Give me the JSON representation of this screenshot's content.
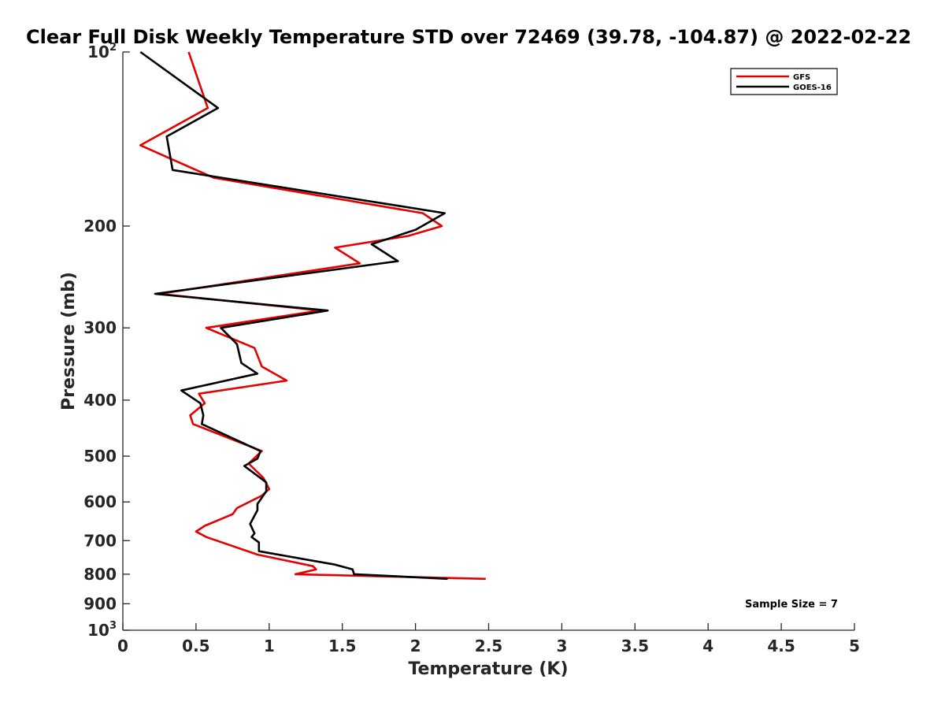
{
  "chart_data": {
    "type": "line",
    "title": "Clear Full Disk Weekly Temperature STD over 72469 (39.78, -104.87) @ 2022-02-22",
    "xlabel": "Temperature (K)",
    "ylabel": "Pressure (mb)",
    "xlim": [
      0,
      5
    ],
    "ylim": [
      100,
      1000
    ],
    "y_scale": "log",
    "y_reversed": true,
    "x_ticks": [
      0,
      0.5,
      1,
      1.5,
      2,
      2.5,
      3,
      3.5,
      4,
      4.5,
      5
    ],
    "x_tick_labels": [
      "0",
      "0.5",
      "1",
      "1.5",
      "2",
      "2.5",
      "3",
      "3.5",
      "4",
      "4.5",
      "5"
    ],
    "y_ticks": [
      100,
      200,
      300,
      400,
      500,
      600,
      700,
      800,
      900,
      1000
    ],
    "y_tick_labels": [
      {
        "base": "10",
        "exp": "2"
      },
      {
        "text": "200"
      },
      {
        "text": "300"
      },
      {
        "text": "400"
      },
      {
        "text": "500"
      },
      {
        "text": "600"
      },
      {
        "text": "700"
      },
      {
        "text": "800"
      },
      {
        "text": "900"
      },
      {
        "base": "10",
        "exp": "3"
      }
    ],
    "grid": false,
    "legend_position": "top-right",
    "annotation": "Sample Size = 7",
    "series": [
      {
        "name": "GFS",
        "color": "#e60000",
        "points": [
          [
            0.45,
            100
          ],
          [
            0.58,
            125
          ],
          [
            0.12,
            145
          ],
          [
            0.62,
            165
          ],
          [
            2.05,
            190
          ],
          [
            2.18,
            200
          ],
          [
            1.95,
            208
          ],
          [
            1.45,
            218
          ],
          [
            1.62,
            232
          ],
          [
            0.25,
            262
          ],
          [
            1.35,
            280
          ],
          [
            0.57,
            300
          ],
          [
            0.9,
            325
          ],
          [
            0.95,
            350
          ],
          [
            1.12,
            370
          ],
          [
            0.52,
            390
          ],
          [
            0.56,
            405
          ],
          [
            0.46,
            425
          ],
          [
            0.48,
            440
          ],
          [
            0.95,
            490
          ],
          [
            0.86,
            515
          ],
          [
            0.96,
            545
          ],
          [
            1.0,
            570
          ],
          [
            0.95,
            585
          ],
          [
            0.78,
            615
          ],
          [
            0.75,
            630
          ],
          [
            0.56,
            660
          ],
          [
            0.5,
            675
          ],
          [
            0.57,
            690
          ],
          [
            0.92,
            740
          ],
          [
            1.3,
            775
          ],
          [
            1.32,
            785
          ],
          [
            1.18,
            800
          ],
          [
            2.48,
            815
          ]
        ]
      },
      {
        "name": "GOES-16",
        "color": "#000000",
        "points": [
          [
            0.12,
            100
          ],
          [
            0.65,
            125
          ],
          [
            0.3,
            140
          ],
          [
            0.34,
            160
          ],
          [
            2.2,
            190
          ],
          [
            2.0,
            203
          ],
          [
            1.7,
            215
          ],
          [
            1.88,
            230
          ],
          [
            0.22,
            262
          ],
          [
            1.4,
            280
          ],
          [
            0.67,
            300
          ],
          [
            0.78,
            320
          ],
          [
            0.81,
            345
          ],
          [
            0.92,
            360
          ],
          [
            0.4,
            385
          ],
          [
            0.53,
            405
          ],
          [
            0.55,
            425
          ],
          [
            0.54,
            440
          ],
          [
            0.94,
            490
          ],
          [
            0.92,
            505
          ],
          [
            0.83,
            520
          ],
          [
            0.98,
            555
          ],
          [
            0.98,
            575
          ],
          [
            0.92,
            605
          ],
          [
            0.92,
            620
          ],
          [
            0.87,
            655
          ],
          [
            0.9,
            680
          ],
          [
            0.88,
            690
          ],
          [
            0.93,
            705
          ],
          [
            0.93,
            730
          ],
          [
            1.45,
            770
          ],
          [
            1.57,
            785
          ],
          [
            1.58,
            800
          ],
          [
            2.22,
            815
          ]
        ]
      }
    ]
  }
}
